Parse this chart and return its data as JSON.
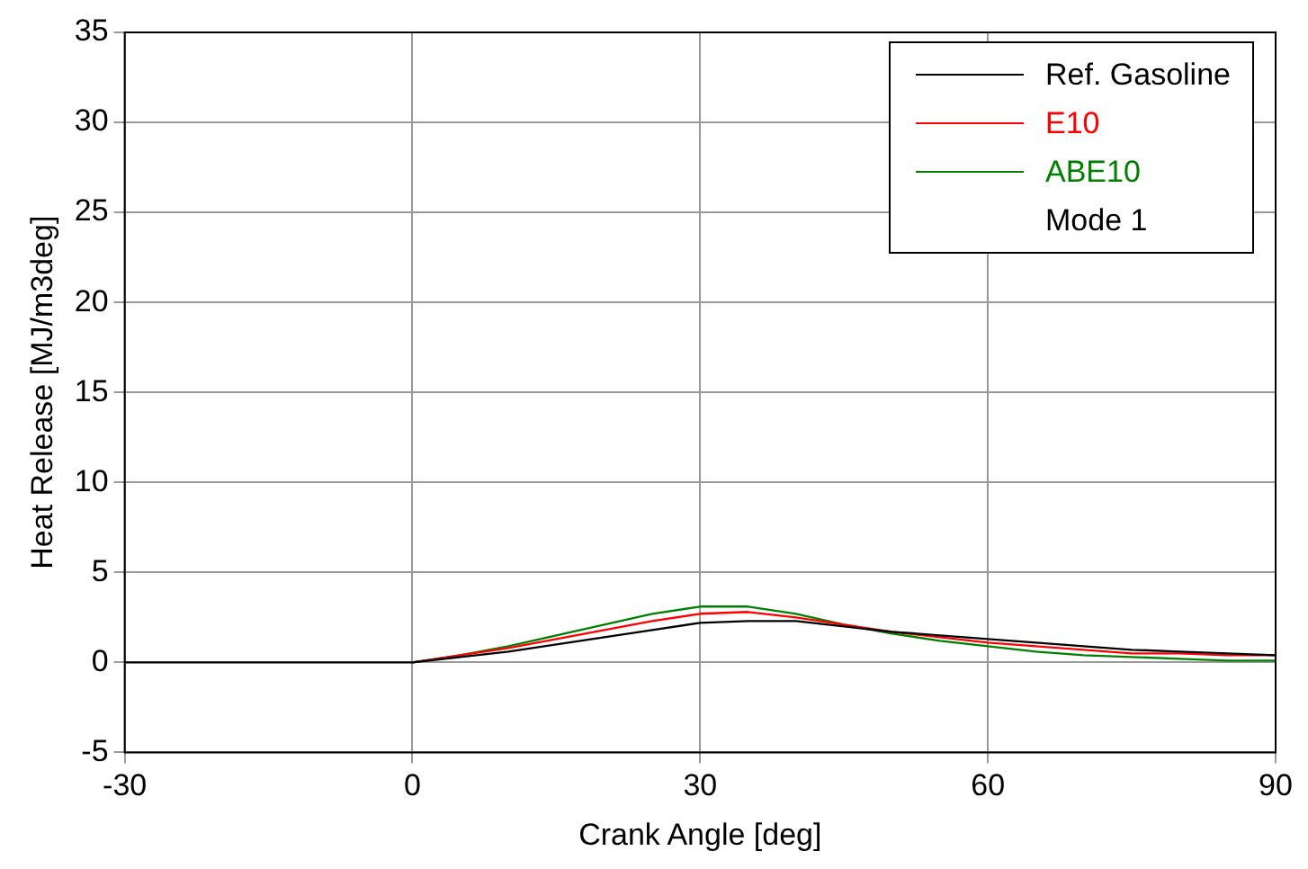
{
  "chart_data": {
    "type": "line",
    "xlabel": "Crank Angle [deg]",
    "ylabel": "Heat Release [MJ/m3deg]",
    "x": [
      -30,
      -25,
      -20,
      -15,
      -10,
      -5,
      0,
      5,
      10,
      15,
      20,
      25,
      30,
      35,
      40,
      45,
      50,
      55,
      60,
      65,
      70,
      75,
      80,
      85,
      90
    ],
    "xlim": [
      -30,
      90
    ],
    "xticks": [
      -30,
      0,
      30,
      60,
      90
    ],
    "ylim": [
      -5,
      35
    ],
    "yticks": [
      -5,
      0,
      5,
      10,
      15,
      20,
      25,
      30,
      35
    ],
    "grid": true,
    "legend": "top right",
    "marker": "none",
    "line_style": "solid",
    "annotations": [
      "Mode 1"
    ],
    "series": [
      {
        "name": "Ref. Gasoline",
        "color": "#000000",
        "values": [
          0,
          0,
          0,
          0,
          0,
          0,
          0,
          0.3,
          0.6,
          1.0,
          1.4,
          1.8,
          2.2,
          2.3,
          2.3,
          2.0,
          1.7,
          1.5,
          1.3,
          1.1,
          0.9,
          0.7,
          0.6,
          0.5,
          0.4
        ]
      },
      {
        "name": "E10",
        "color": "#ff0000",
        "values": [
          null,
          null,
          null,
          null,
          null,
          null,
          0,
          0.4,
          0.8,
          1.3,
          1.8,
          2.3,
          2.7,
          2.8,
          2.5,
          2.1,
          1.7,
          1.4,
          1.1,
          0.9,
          0.7,
          0.5,
          0.5,
          0.4,
          0.4
        ]
      },
      {
        "name": "ABE10",
        "color": "#008000",
        "values": [
          null,
          null,
          null,
          null,
          null,
          null,
          0,
          0.4,
          0.9,
          1.5,
          2.1,
          2.7,
          3.1,
          3.1,
          2.7,
          2.1,
          1.6,
          1.2,
          0.9,
          0.6,
          0.4,
          0.3,
          0.2,
          0.1,
          0.1
        ]
      }
    ]
  }
}
